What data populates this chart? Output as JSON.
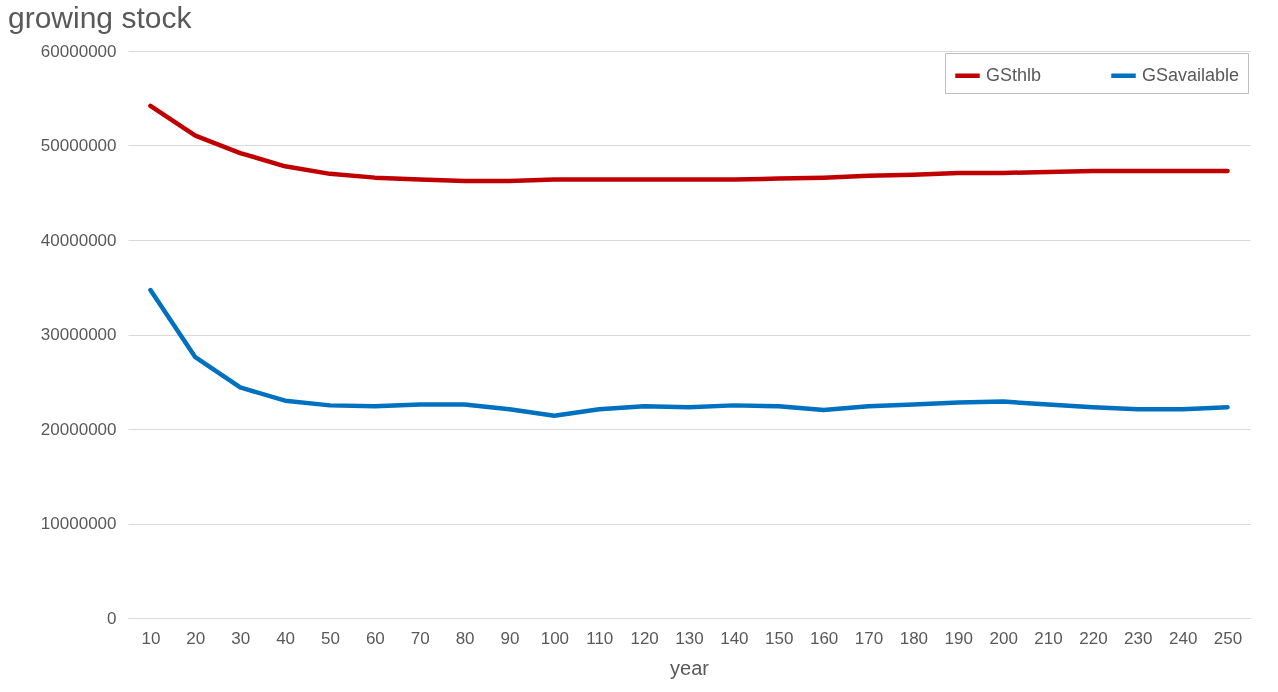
{
  "chart_data": {
    "type": "line",
    "title": "growing stock",
    "xlabel": "year",
    "categories": [
      "10",
      "20",
      "30",
      "40",
      "50",
      "60",
      "70",
      "80",
      "90",
      "100",
      "110",
      "120",
      "130",
      "140",
      "150",
      "160",
      "170",
      "180",
      "190",
      "200",
      "210",
      "220",
      "230",
      "240",
      "250"
    ],
    "series": [
      {
        "name": "GSthlb",
        "color": "#c00000",
        "values": [
          54200000,
          51050000,
          49200000,
          47800000,
          47000000,
          46600000,
          46400000,
          46250000,
          46250000,
          46400000,
          46400000,
          46400000,
          46400000,
          46400000,
          46500000,
          46600000,
          46800000,
          46900000,
          47100000,
          47100000,
          47200000,
          47300000,
          47300000,
          47300000,
          47300000
        ]
      },
      {
        "name": "GSavailable",
        "color": "#0070c0",
        "values": [
          34700000,
          27600000,
          24400000,
          23000000,
          22500000,
          22400000,
          22600000,
          22600000,
          22100000,
          21400000,
          22100000,
          22400000,
          22300000,
          22500000,
          22400000,
          22000000,
          22400000,
          22600000,
          22800000,
          22900000,
          22600000,
          22300000,
          22100000,
          22100000,
          22300000
        ]
      }
    ],
    "ylim": [
      0,
      60000000
    ],
    "yticks": [
      0,
      10000000,
      20000000,
      30000000,
      40000000,
      50000000,
      60000000
    ],
    "grid": "y",
    "legend": "top right",
    "marker": "none",
    "line_style": "solid"
  }
}
